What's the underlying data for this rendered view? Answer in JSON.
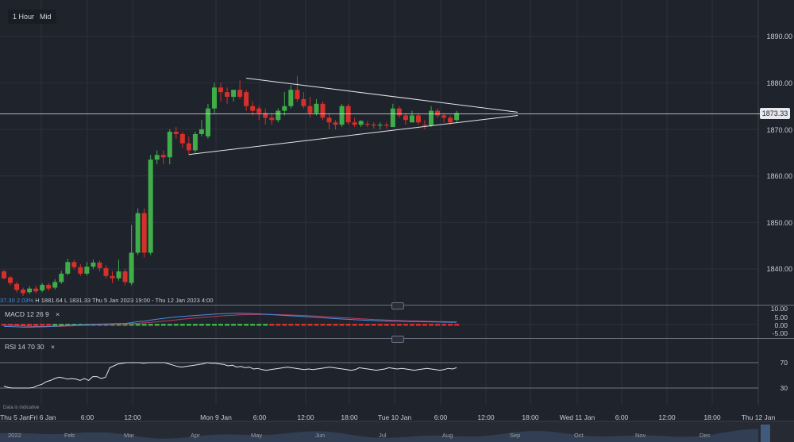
{
  "toolbar": {
    "timeframe": "1 Hour",
    "price_type": "Mid"
  },
  "colors": {
    "background": "#1f232c",
    "up": "#3fae49",
    "down": "#d5302b",
    "macd_line": "#4b8fe0",
    "signal_line": "#c23b63",
    "rsi_line": "#e4e6ea"
  },
  "price_axis": {
    "labels": [
      "1890.00",
      "1880.00",
      "1870.00",
      "1860.00",
      "1850.00",
      "1840.00"
    ],
    "current_price": "1873.33"
  },
  "info_bar": {
    "change": "37.30",
    "change_pct": "2.03%",
    "high": "H 1881.64",
    "low": "L 1831.33",
    "range": "Thu 5 Jan 2023 19:00 - Thu 12 Jan 2023 4:00"
  },
  "macd": {
    "label": "MACD",
    "params": "12 26 9",
    "close": "×",
    "axis": [
      "10.00",
      "5.00",
      "0.00",
      "-5.00"
    ]
  },
  "rsi": {
    "label": "RSI",
    "params": "14 70 30",
    "close": "×",
    "axis": [
      "70",
      "30"
    ]
  },
  "disclaimer": "Data is indicative",
  "time_axis": [
    "Thu 5 Jan",
    "Fri 6 Jan",
    "6:00",
    "12:00",
    "Mon 9 Jan",
    "6:00",
    "12:00",
    "18:00",
    "Tue 10 Jan",
    "6:00",
    "12:00",
    "18:00",
    "Wed 11 Jan",
    "6:00",
    "12:00",
    "18:00",
    "Thu 12 Jan"
  ],
  "navigator": [
    "2022",
    "Feb",
    "Mar",
    "Apr",
    "May",
    "Jun",
    "Jul",
    "Aug",
    "Sep",
    "Oct",
    "Nov",
    "Dec"
  ],
  "chart_data": {
    "type": "candlestick",
    "symbol_units": "price",
    "ylim": [
      1833,
      1895
    ],
    "grid": true,
    "candles": [
      [
        1839.5,
        1838.0,
        1839.8,
        1837.8
      ],
      [
        1838.2,
        1837.0,
        1838.5,
        1836.5
      ],
      [
        1836.8,
        1835.5,
        1837.2,
        1835.0
      ],
      [
        1835.6,
        1834.8,
        1836.0,
        1834.2
      ],
      [
        1835.0,
        1835.8,
        1836.3,
        1834.6
      ],
      [
        1835.8,
        1835.2,
        1836.4,
        1834.8
      ],
      [
        1835.4,
        1836.6,
        1837.0,
        1835.0
      ],
      [
        1836.6,
        1835.8,
        1837.0,
        1835.3
      ],
      [
        1836.0,
        1837.2,
        1837.8,
        1835.6
      ],
      [
        1837.2,
        1839.0,
        1839.6,
        1836.8
      ],
      [
        1839.0,
        1841.5,
        1842.2,
        1838.6
      ],
      [
        1841.5,
        1840.4,
        1842.0,
        1839.9
      ],
      [
        1840.4,
        1839.0,
        1841.0,
        1838.5
      ],
      [
        1839.0,
        1840.5,
        1841.5,
        1838.6
      ],
      [
        1840.5,
        1841.4,
        1842.0,
        1840.0
      ],
      [
        1841.4,
        1840.2,
        1841.8,
        1839.5
      ],
      [
        1840.2,
        1838.5,
        1840.8,
        1838.0
      ],
      [
        1838.5,
        1838.0,
        1839.5,
        1837.0
      ],
      [
        1838.0,
        1839.5,
        1842.0,
        1837.5
      ],
      [
        1839.5,
        1837.2,
        1840.0,
        1836.5
      ],
      [
        1837.0,
        1843.5,
        1849.5,
        1836.5
      ],
      [
        1843.5,
        1852.0,
        1853.0,
        1843.0
      ],
      [
        1852.0,
        1843.5,
        1853.0,
        1842.5
      ],
      [
        1843.5,
        1863.5,
        1864.5,
        1843.0
      ],
      [
        1863.5,
        1864.5,
        1865.5,
        1862.5
      ],
      [
        1864.5,
        1864.0,
        1865.5,
        1862.5
      ],
      [
        1864.0,
        1869.5,
        1870.0,
        1862.5
      ],
      [
        1869.5,
        1869.0,
        1870.5,
        1868.0
      ],
      [
        1869.0,
        1867.0,
        1869.5,
        1866.0
      ],
      [
        1867.0,
        1865.5,
        1868.5,
        1864.5
      ],
      [
        1865.5,
        1869.0,
        1869.5,
        1865.0
      ],
      [
        1869.0,
        1870.0,
        1872.0,
        1868.5
      ],
      [
        1868.5,
        1874.5,
        1875.5,
        1868.0
      ],
      [
        1874.5,
        1879.0,
        1880.0,
        1873.5
      ],
      [
        1879.0,
        1878.0,
        1880.0,
        1876.0
      ],
      [
        1878.0,
        1877.0,
        1879.0,
        1875.5
      ],
      [
        1877.0,
        1878.5,
        1878.5,
        1876.0
      ],
      [
        1878.5,
        1877.0,
        1880.5,
        1876.5
      ],
      [
        1878.0,
        1875.0,
        1878.5,
        1874.0
      ],
      [
        1875.0,
        1874.0,
        1876.0,
        1873.0
      ],
      [
        1874.5,
        1873.5,
        1875.0,
        1872.0
      ],
      [
        1873.5,
        1872.5,
        1874.5,
        1871.0
      ],
      [
        1872.5,
        1872.0,
        1873.5,
        1871.0
      ],
      [
        1872.0,
        1874.0,
        1874.5,
        1871.5
      ],
      [
        1874.0,
        1875.0,
        1878.0,
        1873.0
      ],
      [
        1875.0,
        1878.5,
        1879.5,
        1874.5
      ],
      [
        1878.5,
        1876.5,
        1881.5,
        1876.0
      ],
      [
        1876.5,
        1875.0,
        1878.0,
        1874.5
      ],
      [
        1875.0,
        1873.5,
        1877.0,
        1872.5
      ],
      [
        1873.5,
        1875.5,
        1876.5,
        1873.0
      ],
      [
        1875.5,
        1872.5,
        1876.0,
        1872.0
      ],
      [
        1872.5,
        1871.5,
        1873.5,
        1870.0
      ],
      [
        1871.5,
        1871.0,
        1872.0,
        1870.0
      ],
      [
        1871.0,
        1875.0,
        1875.5,
        1870.5
      ],
      [
        1875.0,
        1871.5,
        1875.5,
        1871.0
      ],
      [
        1871.5,
        1871.0,
        1872.5,
        1870.5
      ],
      [
        1871.0,
        1871.8,
        1872.0,
        1870.5
      ],
      [
        1871.2,
        1871.0,
        1871.8,
        1870.5
      ],
      [
        1871.0,
        1870.8,
        1871.5,
        1870.2
      ],
      [
        1870.8,
        1871.0,
        1871.5,
        1870.0
      ],
      [
        1871.0,
        1870.8,
        1871.5,
        1870.2
      ],
      [
        1870.5,
        1874.5,
        1875.5,
        1870.5
      ],
      [
        1874.5,
        1873.0,
        1875.0,
        1872.5
      ],
      [
        1873.0,
        1872.0,
        1873.5,
        1871.0
      ],
      [
        1871.5,
        1873.0,
        1874.0,
        1871.5
      ],
      [
        1873.0,
        1871.5,
        1873.5,
        1871.0
      ],
      [
        1871.0,
        1870.8,
        1872.0,
        1870.0
      ],
      [
        1870.8,
        1874.0,
        1875.0,
        1870.5
      ],
      [
        1874.0,
        1873.0,
        1874.5,
        1872.5
      ],
      [
        1873.0,
        1872.5,
        1873.5,
        1871.5
      ],
      [
        1872.5,
        1871.5,
        1873.0,
        1871.0
      ],
      [
        1872.0,
        1873.5,
        1874.0,
        1871.5
      ]
    ],
    "triangle": {
      "upper": [
        [
          38,
          1881.0
        ],
        [
          73,
          1873.7
        ]
      ],
      "lower": [
        [
          29,
          1864.6
        ],
        [
          73,
          1873.0
        ]
      ]
    },
    "current_price": 1873.33,
    "macd": {
      "ylim": [
        -7,
        11
      ],
      "macd_line": [
        -1.5,
        -1.6,
        -1.8,
        -2.0,
        -2.0,
        -1.9,
        -1.8,
        -1.6,
        -1.3,
        -1.0,
        -0.6,
        -0.3,
        -0.1,
        0.0,
        0.2,
        0.4,
        0.5,
        0.6,
        0.8,
        0.9,
        1.5,
        2.3,
        2.6,
        3.5,
        4.2,
        4.8,
        5.5,
        6.0,
        6.4,
        6.8,
        7.1,
        7.5,
        7.8,
        8.2,
        8.5,
        8.7,
        8.8,
        8.9,
        8.8,
        8.6,
        8.4,
        8.1,
        7.8,
        7.5,
        7.2,
        6.9,
        6.6,
        6.3,
        6.0,
        5.7,
        5.4,
        5.0,
        4.7,
        4.4,
        4.1,
        3.8,
        3.6,
        3.4,
        3.2,
        3.0,
        2.8,
        2.7,
        2.6,
        2.5,
        2.4,
        2.3,
        2.2,
        2.1,
        2.0,
        1.9,
        1.8,
        1.8
      ],
      "signal_line": [
        -0.5,
        -0.7,
        -0.9,
        -1.1,
        -1.3,
        -1.4,
        -1.5,
        -1.5,
        -1.5,
        -1.4,
        -1.2,
        -1.0,
        -0.8,
        -0.6,
        -0.4,
        -0.2,
        0.0,
        0.1,
        0.3,
        0.4,
        0.7,
        1.0,
        1.3,
        1.7,
        2.2,
        2.7,
        3.2,
        3.7,
        4.2,
        4.7,
        5.2,
        5.6,
        6.0,
        6.4,
        6.8,
        7.1,
        7.4,
        7.6,
        7.8,
        7.9,
        8.0,
        8.0,
        7.9,
        7.8,
        7.7,
        7.5,
        7.3,
        7.1,
        6.9,
        6.6,
        6.3,
        6.0,
        5.7,
        5.4,
        5.1,
        4.8,
        4.5,
        4.3,
        4.0,
        3.8,
        3.6,
        3.4,
        3.2,
        3.0,
        2.9,
        2.8,
        2.6,
        2.5,
        2.4,
        2.3,
        2.2,
        2.1
      ]
    },
    "rsi": {
      "ylim": [
        22,
        82
      ],
      "levels": [
        70,
        30
      ],
      "values": [
        33,
        31,
        30,
        30,
        30,
        30,
        30,
        31,
        34,
        36,
        40,
        42,
        45,
        47,
        46,
        44,
        45,
        44,
        42,
        45,
        42,
        48,
        48,
        45,
        47,
        62,
        65,
        68,
        69,
        70,
        70,
        70,
        70,
        69,
        70,
        70,
        70,
        70,
        70,
        68,
        66,
        64,
        63,
        64,
        65,
        66,
        67,
        68,
        70,
        69,
        69,
        68,
        67,
        65,
        66,
        63,
        64,
        62,
        63,
        60,
        61,
        59,
        58,
        59,
        60,
        61,
        62,
        63,
        62,
        61,
        60,
        59,
        60,
        59,
        60,
        61,
        62,
        63,
        62,
        61,
        60,
        59,
        58,
        59,
        62,
        61,
        60,
        59,
        58,
        59,
        60,
        62,
        61,
        60,
        61,
        60,
        59,
        58,
        59,
        60,
        61,
        60,
        59,
        58,
        59,
        61,
        60,
        62
      ]
    }
  }
}
